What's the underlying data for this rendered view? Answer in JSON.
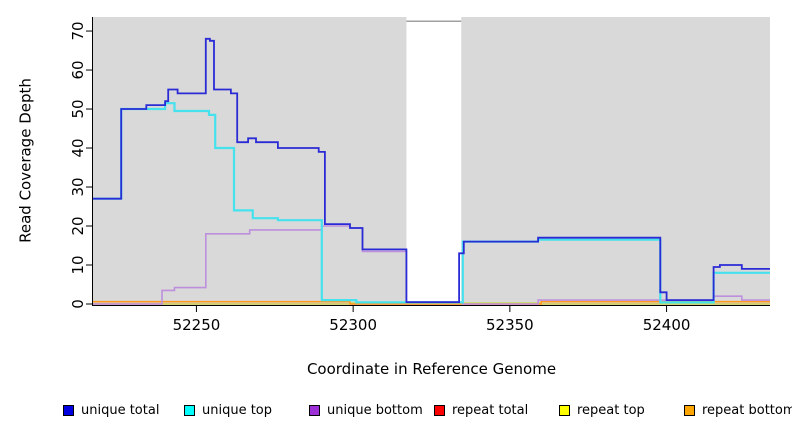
{
  "chart_data": {
    "type": "line",
    "subtype": "step-after",
    "title": "",
    "xlabel": "Coordinate in Reference Genome",
    "ylabel": "Read Coverage Depth",
    "xlim": [
      52217,
      52433
    ],
    "ylim": [
      0,
      73.6
    ],
    "xticks": [
      52250,
      52300,
      52350,
      52400
    ],
    "yticks": [
      0,
      10,
      20,
      30,
      40,
      50,
      60,
      70
    ],
    "grid": false,
    "legend_position": "bottom",
    "plot_bg": "#d9d9d9",
    "gap_region": {
      "x_start": 52317,
      "x_end": 52334.5,
      "top_value": 72.5,
      "color": "#ffffff",
      "border_color": "#a0a0a0"
    },
    "series": [
      {
        "id": "repeat-total",
        "name": "repeat total",
        "color": "#e8638c",
        "width": 1.4,
        "points": [
          [
            52217,
            0
          ],
          [
            52433,
            0
          ]
        ]
      },
      {
        "id": "repeat-top",
        "name": "repeat top",
        "color": "#c9dc60",
        "width": 1.4,
        "points": [
          [
            52217,
            0
          ],
          [
            52299,
            0.25
          ],
          [
            52360,
            0
          ],
          [
            52433,
            0
          ]
        ]
      },
      {
        "id": "repeat-bottom",
        "name": "repeat bottom",
        "color": "#ff9a1e",
        "width": 1.6,
        "points": [
          [
            52217,
            0.6
          ],
          [
            52299,
            0
          ],
          [
            52360,
            0.6
          ],
          [
            52433,
            0.6
          ]
        ]
      },
      {
        "id": "unique-bottom",
        "name": "unique bottom",
        "color": "#bd8fdd",
        "width": 1.6,
        "points": [
          [
            52217,
            0
          ],
          [
            52239,
            3.5
          ],
          [
            52243,
            4.2
          ],
          [
            52253,
            18
          ],
          [
            52267,
            19
          ],
          [
            52290,
            20
          ],
          [
            52299,
            19.5
          ],
          [
            52303,
            13.5
          ],
          [
            52317,
            0.5
          ],
          [
            52335,
            0
          ],
          [
            52359,
            1
          ],
          [
            52415,
            2
          ],
          [
            52424,
            1
          ],
          [
            52433,
            1
          ]
        ]
      },
      {
        "id": "unique-top",
        "name": "unique top",
        "color": "#45e2ee",
        "width": 2.2,
        "points": [
          [
            52217,
            27
          ],
          [
            52226,
            50
          ],
          [
            52240,
            51.5
          ],
          [
            52243,
            49.5
          ],
          [
            52254,
            48.5
          ],
          [
            52256,
            40
          ],
          [
            52262,
            24
          ],
          [
            52268,
            22
          ],
          [
            52276,
            21.5
          ],
          [
            52290,
            1
          ],
          [
            52301,
            0.4
          ],
          [
            52335,
            16
          ],
          [
            52359,
            16.5
          ],
          [
            52398,
            0.4
          ],
          [
            52415,
            8
          ],
          [
            52433,
            8
          ]
        ]
      },
      {
        "id": "unique-total",
        "name": "unique total",
        "color": "#2b2bd5",
        "width": 1.8,
        "points": [
          [
            52217,
            27
          ],
          [
            52226,
            50
          ],
          [
            52234,
            51
          ],
          [
            52240,
            52
          ],
          [
            52241,
            55
          ],
          [
            52244,
            54
          ],
          [
            52253,
            68
          ],
          [
            52254.3,
            67.5
          ],
          [
            52255.6,
            55
          ],
          [
            52261,
            54
          ],
          [
            52263,
            41.5
          ],
          [
            52266.5,
            42.5
          ],
          [
            52269,
            41.5
          ],
          [
            52276,
            40
          ],
          [
            52289,
            39
          ],
          [
            52291,
            20.5
          ],
          [
            52299,
            19.5
          ],
          [
            52303,
            14
          ],
          [
            52317,
            0.5
          ],
          [
            52333.8,
            13
          ],
          [
            52335.3,
            16
          ],
          [
            52359,
            17
          ],
          [
            52398,
            3
          ],
          [
            52400,
            1
          ],
          [
            52415,
            9.5
          ],
          [
            52417,
            10
          ],
          [
            52424,
            9
          ],
          [
            52433,
            9
          ]
        ]
      }
    ]
  },
  "legend": {
    "items": [
      {
        "label": "unique total",
        "swatch": "#0000e0"
      },
      {
        "label": "unique top",
        "swatch": "#00ffff"
      },
      {
        "label": "unique bottom",
        "swatch": "#9c2fd6"
      },
      {
        "label": "repeat total",
        "swatch": "#ff0000"
      },
      {
        "label": "repeat top",
        "swatch": "#ffff00"
      },
      {
        "label": "repeat bottom",
        "swatch": "#ffa500"
      }
    ]
  }
}
